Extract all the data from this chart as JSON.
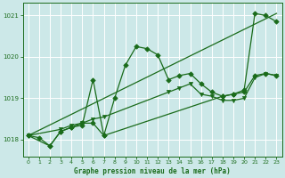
{
  "title": "Graphe pression niveau de la mer (hPa)",
  "bg_color": "#cce8e8",
  "line_color": "#1a6b1a",
  "grid_color": "#ffffff",
  "xlim": [
    -0.5,
    23.5
  ],
  "ylim": [
    1017.6,
    1021.3
  ],
  "yticks": [
    1018,
    1019,
    1020,
    1021
  ],
  "xticks": [
    0,
    1,
    2,
    3,
    4,
    5,
    6,
    7,
    8,
    9,
    10,
    11,
    12,
    13,
    14,
    15,
    16,
    17,
    18,
    19,
    20,
    21,
    22,
    23
  ],
  "series": [
    {
      "x": [
        0,
        1,
        2,
        3,
        4,
        5,
        6,
        7,
        8,
        9,
        10,
        11,
        12,
        13,
        14,
        15,
        16,
        17,
        18,
        19,
        20,
        21,
        22,
        23
      ],
      "y": [
        1018.1,
        1018.05,
        1017.85,
        1018.2,
        1018.3,
        1018.35,
        1019.45,
        1018.1,
        1019.0,
        1019.8,
        1020.25,
        1020.2,
        1020.05,
        1019.45,
        1019.55,
        1019.6,
        1019.35,
        1019.15,
        1019.05,
        1019.1,
        1019.2,
        1021.05,
        1021.0,
        1020.85
      ],
      "marker": "D",
      "markersize": 2.8,
      "linewidth": 0.9
    },
    {
      "x": [
        0,
        23
      ],
      "y": [
        1018.1,
        1021.05
      ],
      "marker": null,
      "markersize": 0,
      "linewidth": 0.9
    },
    {
      "x": [
        0,
        3,
        4,
        5,
        6,
        7,
        13,
        14,
        15,
        16,
        17,
        18,
        19,
        20,
        21,
        22,
        23
      ],
      "y": [
        1018.1,
        1018.25,
        1018.35,
        1018.4,
        1018.5,
        1018.55,
        1019.15,
        1019.25,
        1019.35,
        1019.1,
        1019.05,
        1018.95,
        1018.95,
        1019.0,
        1019.5,
        1019.6,
        1019.55
      ],
      "marker": "v",
      "markersize": 3.0,
      "linewidth": 0.9
    },
    {
      "x": [
        0,
        2,
        3,
        4,
        5,
        6,
        7,
        18,
        19,
        20,
        21,
        22,
        23
      ],
      "y": [
        1018.1,
        1017.85,
        1018.2,
        1018.3,
        1018.4,
        1018.4,
        1018.1,
        1019.05,
        1019.1,
        1019.15,
        1019.55,
        1019.6,
        1019.55
      ],
      "marker": "D",
      "markersize": 2.8,
      "linewidth": 0.9
    }
  ]
}
